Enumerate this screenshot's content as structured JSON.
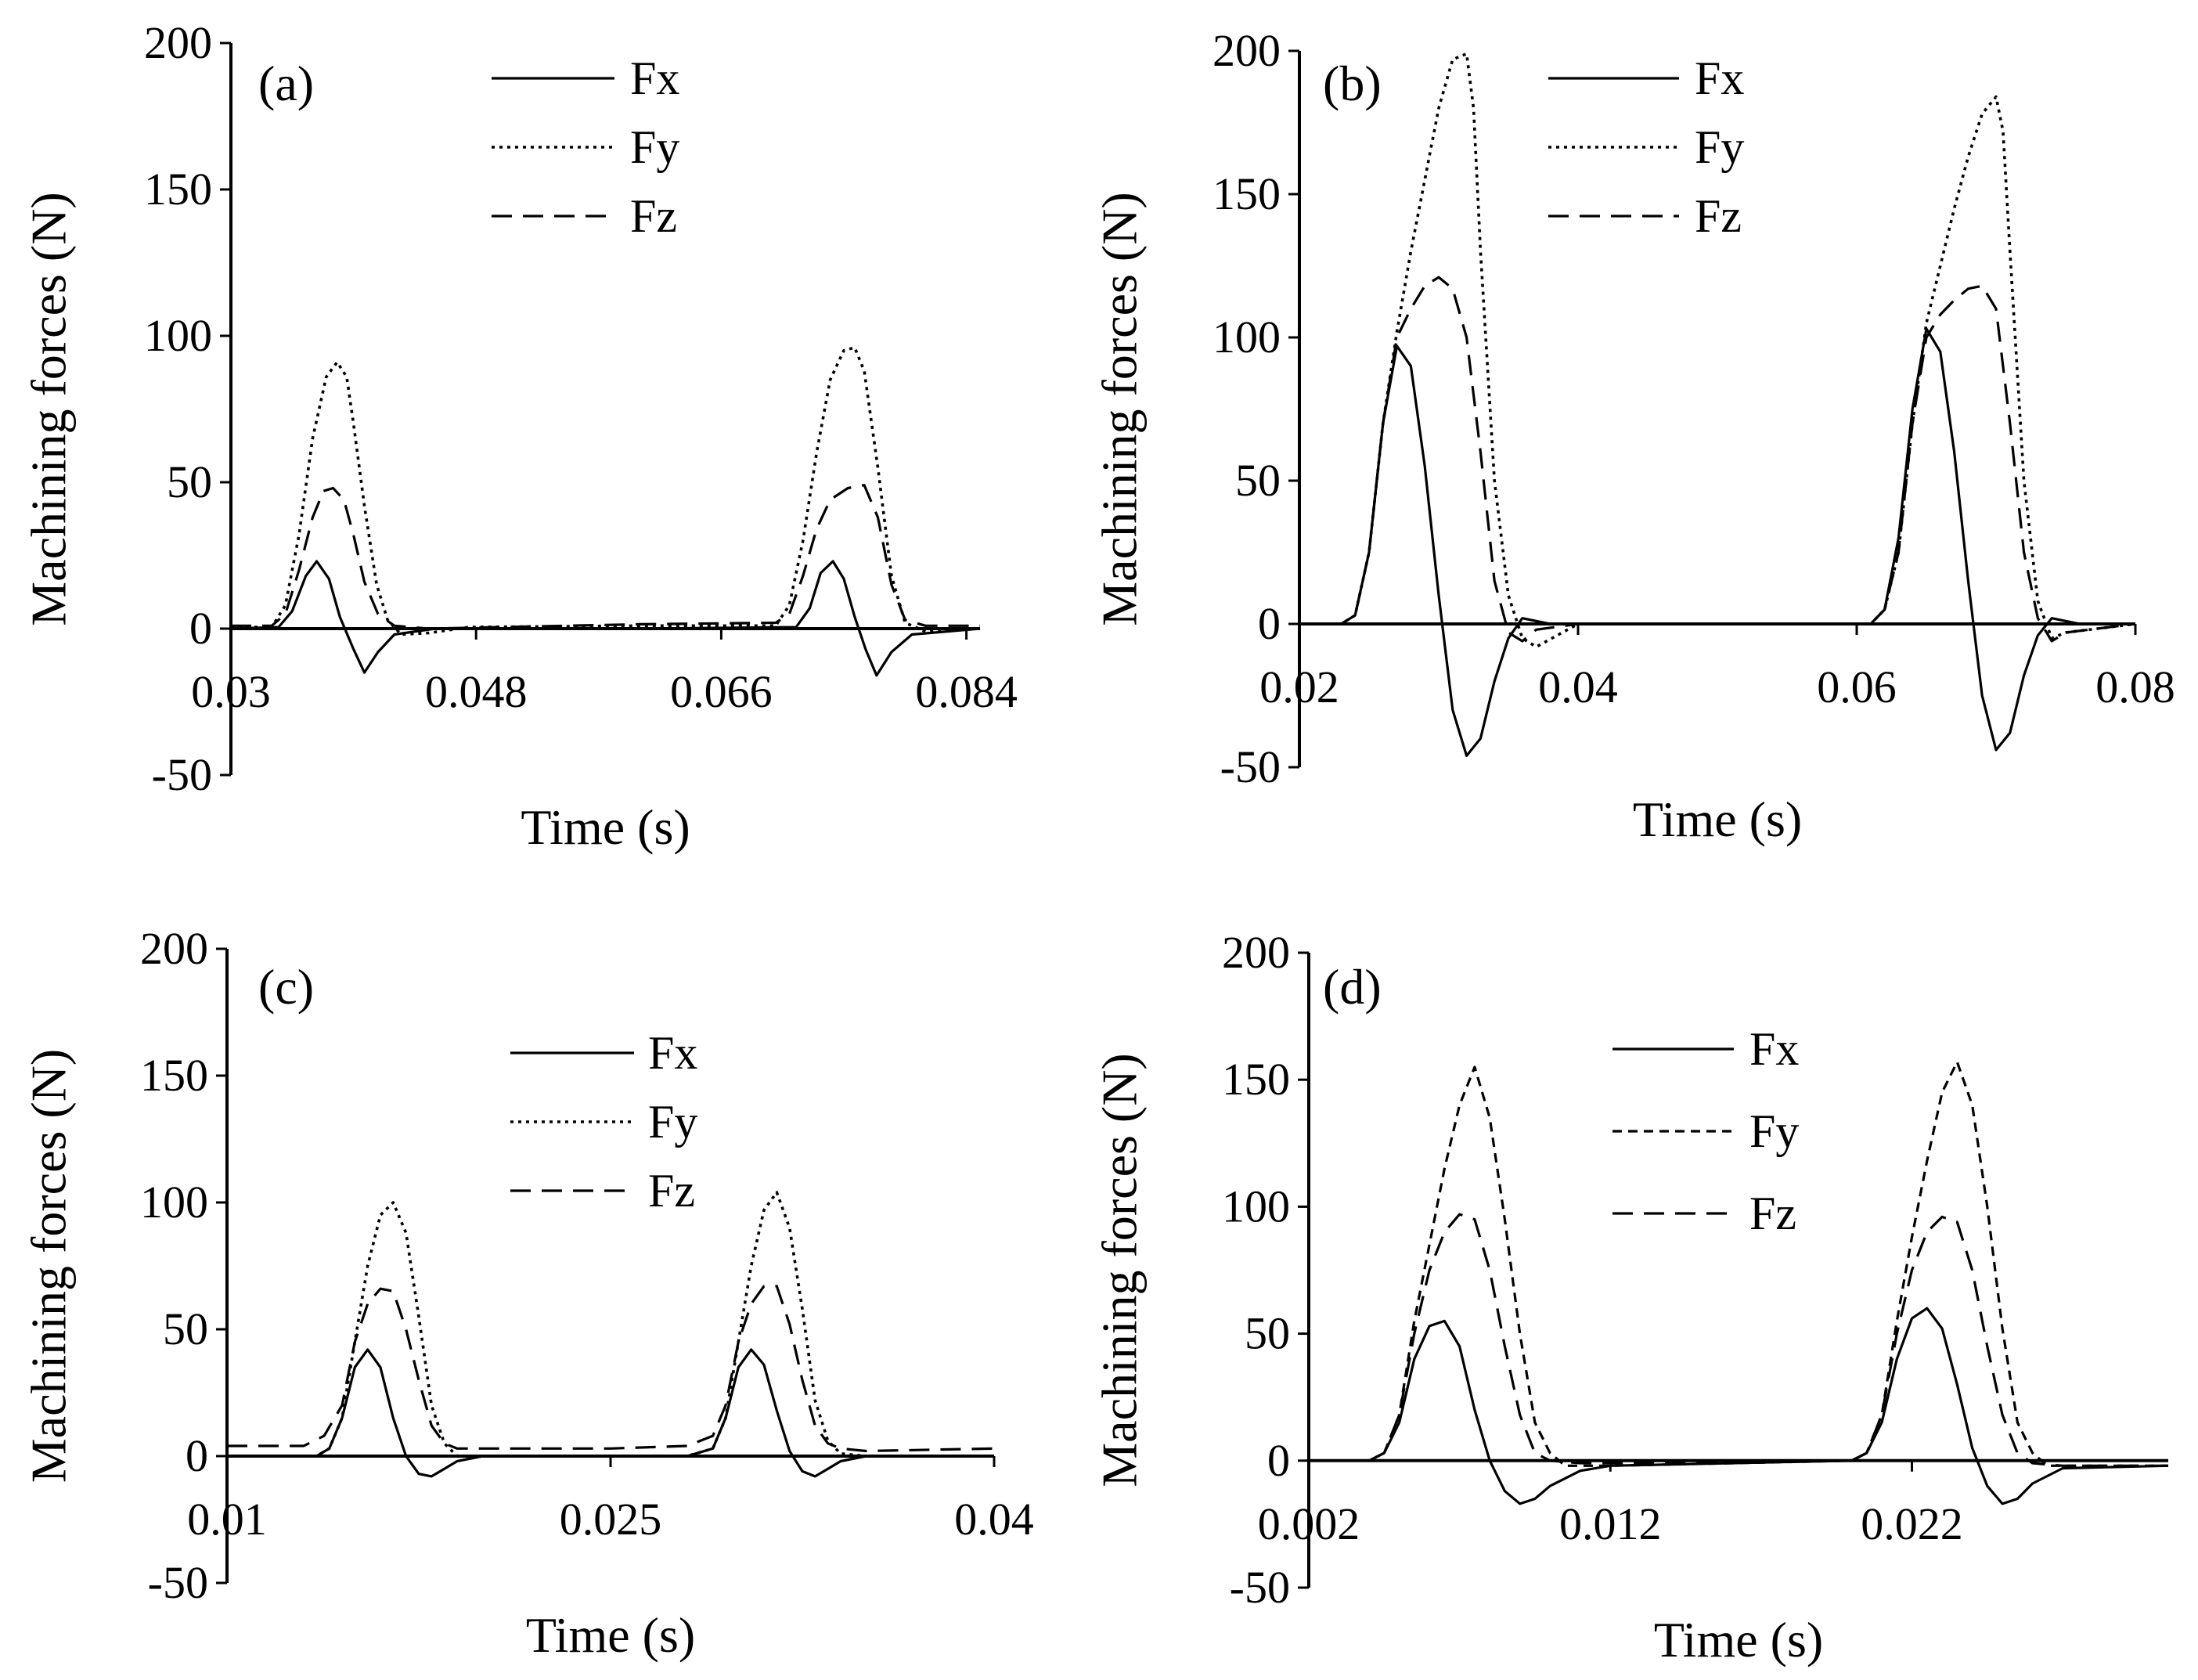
{
  "figure": {
    "background": "#ffffff",
    "line_color": "#000000"
  },
  "chart_data": [
    {
      "type": "line",
      "panel_label": "(a)",
      "xlabel": "Time (s)",
      "ylabel": "Machining forces (N)",
      "xlim": [
        0.03,
        0.085
      ],
      "ylim": [
        -50,
        200
      ],
      "x_ticks": [
        0.03,
        0.048,
        0.066,
        0.084
      ],
      "x_tick_labels": [
        "0.03",
        "0.048",
        "0.066",
        "0.084"
      ],
      "y_ticks": [
        -50,
        0,
        50,
        100,
        150,
        200
      ],
      "y_tick_labels": [
        "-50",
        "0",
        "50",
        "100",
        "150",
        "200"
      ],
      "legend": [
        "Fx",
        "Fy",
        "Fz"
      ],
      "series": [
        {
          "name": "Fx",
          "style": "solid",
          "x": [
            0.03,
            0.0335,
            0.0345,
            0.0355,
            0.0363,
            0.0372,
            0.038,
            0.039,
            0.0398,
            0.0408,
            0.042,
            0.045,
            0.06,
            0.0715,
            0.0725,
            0.0733,
            0.0742,
            0.075,
            0.0758,
            0.0766,
            0.0774,
            0.0785,
            0.08,
            0.085
          ],
          "y": [
            0,
            0.5,
            6,
            18,
            23,
            17,
            4,
            -7,
            -15,
            -8,
            -2,
            0,
            0,
            0.5,
            7,
            19,
            23,
            17,
            4,
            -7,
            -16,
            -8,
            -2,
            0
          ]
        },
        {
          "name": "Fy",
          "style": "dotted",
          "x": [
            0.03,
            0.033,
            0.034,
            0.035,
            0.036,
            0.037,
            0.0378,
            0.0385,
            0.039,
            0.0398,
            0.0407,
            0.0415,
            0.0425,
            0.0445,
            0.0475,
            0.06,
            0.07,
            0.071,
            0.072,
            0.073,
            0.074,
            0.075,
            0.0758,
            0.0765,
            0.0775,
            0.0785,
            0.0795,
            0.081,
            0.085
          ],
          "y": [
            0.5,
            0.5,
            8,
            32,
            65,
            86,
            91,
            86,
            70,
            42,
            15,
            3,
            -2,
            -1.5,
            0.5,
            1,
            1,
            8,
            30,
            60,
            85,
            95,
            96,
            88,
            55,
            18,
            2,
            -1,
            0
          ]
        },
        {
          "name": "Fz",
          "style": "dashed",
          "x": [
            0.03,
            0.033,
            0.034,
            0.035,
            0.036,
            0.0368,
            0.0375,
            0.0383,
            0.039,
            0.0398,
            0.0408,
            0.042,
            0.0445,
            0.06,
            0.07,
            0.071,
            0.072,
            0.073,
            0.074,
            0.0753,
            0.0765,
            0.0775,
            0.0785,
            0.0795,
            0.081,
            0.085
          ],
          "y": [
            1,
            1,
            5,
            20,
            38,
            47,
            48,
            44,
            32,
            16,
            5,
            1,
            0,
            1.5,
            2,
            5,
            18,
            34,
            44,
            48,
            49,
            38,
            15,
            3,
            1,
            1
          ]
        }
      ]
    },
    {
      "type": "line",
      "panel_label": "(b)",
      "xlabel": "Time (s)",
      "ylabel": "Machining forces (N)",
      "xlim": [
        0.02,
        0.08
      ],
      "ylim": [
        -50,
        200
      ],
      "x_ticks": [
        0.02,
        0.04,
        0.06,
        0.08
      ],
      "x_tick_labels": [
        "0.02",
        "0.04",
        "0.06",
        "0.08"
      ],
      "y_ticks": [
        -50,
        0,
        50,
        100,
        150,
        200
      ],
      "y_tick_labels": [
        "-50",
        "0",
        "50",
        "100",
        "150",
        "200"
      ],
      "legend": [
        "Fx",
        "Fy",
        "Fz"
      ],
      "series": [
        {
          "name": "Fx",
          "style": "solid",
          "x": [
            0.02,
            0.023,
            0.024,
            0.025,
            0.026,
            0.027,
            0.028,
            0.029,
            0.03,
            0.031,
            0.032,
            0.033,
            0.034,
            0.035,
            0.036,
            0.038,
            0.05,
            0.061,
            0.062,
            0.063,
            0.064,
            0.065,
            0.066,
            0.067,
            0.068,
            0.069,
            0.07,
            0.071,
            0.072,
            0.073,
            0.074,
            0.076,
            0.08
          ],
          "y": [
            0,
            0,
            3,
            25,
            70,
            97,
            90,
            55,
            10,
            -30,
            -46,
            -40,
            -20,
            -5,
            2,
            0,
            0,
            0,
            5,
            30,
            75,
            103,
            95,
            60,
            15,
            -25,
            -44,
            -38,
            -18,
            -4,
            2,
            0,
            0
          ]
        },
        {
          "name": "Fy",
          "style": "dotted",
          "x": [
            0.02,
            0.023,
            0.024,
            0.025,
            0.026,
            0.027,
            0.028,
            0.029,
            0.03,
            0.031,
            0.032,
            0.0325,
            0.033,
            0.034,
            0.035,
            0.036,
            0.037,
            0.04,
            0.05,
            0.061,
            0.062,
            0.063,
            0.064,
            0.065,
            0.066,
            0.067,
            0.068,
            0.069,
            0.07,
            0.0705,
            0.071,
            0.072,
            0.073,
            0.074,
            0.075,
            0.08
          ],
          "y": [
            0,
            0,
            3,
            25,
            70,
            102,
            130,
            155,
            180,
            197,
            199,
            180,
            130,
            50,
            10,
            -5,
            -8,
            0,
            0,
            0,
            5,
            25,
            70,
            105,
            125,
            145,
            163,
            178,
            184,
            172,
            130,
            50,
            8,
            -5,
            -3,
            0
          ]
        },
        {
          "name": "Fz",
          "style": "dashed",
          "x": [
            0.02,
            0.023,
            0.024,
            0.025,
            0.026,
            0.027,
            0.028,
            0.029,
            0.03,
            0.031,
            0.032,
            0.033,
            0.034,
            0.035,
            0.036,
            0.037,
            0.04,
            0.05,
            0.061,
            0.062,
            0.063,
            0.064,
            0.065,
            0.066,
            0.067,
            0.068,
            0.069,
            0.07,
            0.071,
            0.072,
            0.073,
            0.074,
            0.075,
            0.08
          ],
          "y": [
            0,
            0,
            3,
            25,
            70,
            100,
            110,
            118,
            121,
            117,
            100,
            60,
            15,
            -3,
            -6,
            -2,
            0,
            0,
            0,
            5,
            25,
            70,
            100,
            108,
            113,
            117,
            118,
            110,
            70,
            25,
            2,
            -6,
            -3,
            0
          ]
        }
      ]
    },
    {
      "type": "line",
      "panel_label": "(c)",
      "xlabel": "Time (s)",
      "ylabel": "Machining forces (N)",
      "xlim": [
        0.01,
        0.04
      ],
      "ylim": [
        -50,
        200
      ],
      "x_ticks": [
        0.01,
        0.025,
        0.04
      ],
      "x_tick_labels": [
        "0.01",
        "0.025",
        "0.04"
      ],
      "y_ticks": [
        -50,
        0,
        50,
        100,
        150,
        200
      ],
      "y_tick_labels": [
        "-50",
        "0",
        "50",
        "100",
        "150",
        "200"
      ],
      "legend": [
        "Fx",
        "Fy",
        "Fz"
      ],
      "series": [
        {
          "name": "Fx",
          "style": "solid",
          "x": [
            0.01,
            0.0135,
            0.014,
            0.0145,
            0.015,
            0.0155,
            0.016,
            0.0165,
            0.017,
            0.0175,
            0.018,
            0.0185,
            0.019,
            0.02,
            0.028,
            0.029,
            0.0295,
            0.03,
            0.0305,
            0.031,
            0.0315,
            0.032,
            0.0325,
            0.033,
            0.0335,
            0.034,
            0.035,
            0.04
          ],
          "y": [
            0,
            0,
            3,
            15,
            35,
            42,
            35,
            15,
            0,
            -7,
            -8,
            -5,
            -2,
            0,
            0,
            3,
            15,
            35,
            42,
            36,
            18,
            2,
            -6,
            -8,
            -5,
            -2,
            0,
            0
          ]
        },
        {
          "name": "Fy",
          "style": "dotted",
          "x": [
            0.01,
            0.0135,
            0.014,
            0.0145,
            0.015,
            0.0155,
            0.016,
            0.0165,
            0.017,
            0.0175,
            0.018,
            0.0185,
            0.019,
            0.02,
            0.028,
            0.029,
            0.0295,
            0.03,
            0.0305,
            0.031,
            0.0315,
            0.032,
            0.0325,
            0.033,
            0.0335,
            0.034,
            0.035,
            0.04
          ],
          "y": [
            0,
            0,
            3,
            15,
            45,
            75,
            95,
            100,
            88,
            55,
            20,
            5,
            0,
            0,
            0,
            3,
            15,
            45,
            75,
            97,
            104,
            90,
            58,
            22,
            6,
            1,
            0,
            0
          ]
        },
        {
          "name": "Fz",
          "style": "dashed",
          "x": [
            0.01,
            0.013,
            0.0138,
            0.0145,
            0.015,
            0.0155,
            0.016,
            0.0165,
            0.017,
            0.0175,
            0.018,
            0.0185,
            0.019,
            0.02,
            0.025,
            0.028,
            0.029,
            0.0295,
            0.03,
            0.0305,
            0.031,
            0.0315,
            0.032,
            0.0325,
            0.033,
            0.0335,
            0.034,
            0.035,
            0.04
          ],
          "y": [
            4,
            4,
            8,
            20,
            45,
            60,
            66,
            65,
            50,
            30,
            12,
            5,
            3,
            3,
            3,
            4,
            8,
            20,
            45,
            60,
            67,
            67,
            52,
            30,
            12,
            5,
            3,
            2,
            3
          ]
        }
      ]
    },
    {
      "type": "line",
      "panel_label": "(d)",
      "xlabel": "Time (s)",
      "ylabel": "Machining forces (N)",
      "xlim": [
        0.002,
        0.0305
      ],
      "ylim": [
        -50,
        200
      ],
      "x_ticks": [
        0.002,
        0.012,
        0.022
      ],
      "x_tick_labels": [
        "0.002",
        "0.012",
        "0.022"
      ],
      "y_ticks": [
        -50,
        0,
        50,
        100,
        150,
        200
      ],
      "y_tick_labels": [
        "-50",
        "0",
        "50",
        "100",
        "150",
        "200"
      ],
      "legend": [
        "Fx",
        "Fy",
        "Fz"
      ],
      "series": [
        {
          "name": "Fx",
          "style": "solid",
          "x": [
            0.002,
            0.004,
            0.0045,
            0.005,
            0.0055,
            0.006,
            0.0065,
            0.007,
            0.0075,
            0.008,
            0.0085,
            0.009,
            0.0095,
            0.01,
            0.011,
            0.012,
            0.02,
            0.0205,
            0.021,
            0.0215,
            0.022,
            0.0225,
            0.023,
            0.0235,
            0.024,
            0.0245,
            0.025,
            0.0255,
            0.026,
            0.027,
            0.0305
          ],
          "y": [
            0,
            0,
            3,
            15,
            40,
            53,
            55,
            45,
            20,
            0,
            -12,
            -17,
            -15,
            -10,
            -4,
            -2,
            0,
            3,
            15,
            40,
            56,
            60,
            52,
            30,
            5,
            -10,
            -17,
            -15,
            -9,
            -3,
            -2
          ]
        },
        {
          "name": "Fy",
          "style": "dashed-fine",
          "x": [
            0.002,
            0.004,
            0.0045,
            0.005,
            0.0055,
            0.006,
            0.0065,
            0.007,
            0.0075,
            0.008,
            0.0085,
            0.009,
            0.0095,
            0.01,
            0.0105,
            0.011,
            0.012,
            0.02,
            0.0205,
            0.021,
            0.0215,
            0.022,
            0.0225,
            0.023,
            0.0235,
            0.024,
            0.0245,
            0.025,
            0.0255,
            0.026,
            0.0265,
            0.027,
            0.0305
          ],
          "y": [
            0,
            0,
            3,
            18,
            55,
            85,
            115,
            140,
            155,
            135,
            95,
            50,
            15,
            3,
            -2,
            -2,
            -2,
            0,
            3,
            18,
            55,
            88,
            118,
            145,
            157,
            140,
            100,
            52,
            15,
            3,
            -2,
            -2,
            -2
          ]
        },
        {
          "name": "Fz",
          "style": "dashed",
          "x": [
            0.002,
            0.004,
            0.0045,
            0.005,
            0.0055,
            0.006,
            0.0065,
            0.007,
            0.0075,
            0.008,
            0.0085,
            0.009,
            0.0095,
            0.01,
            0.011,
            0.012,
            0.02,
            0.0205,
            0.021,
            0.0215,
            0.022,
            0.0225,
            0.023,
            0.0235,
            0.024,
            0.0245,
            0.025,
            0.0255,
            0.026,
            0.027,
            0.0305
          ],
          "y": [
            0,
            0,
            3,
            18,
            50,
            75,
            90,
            97,
            95,
            75,
            45,
            18,
            3,
            0,
            -1,
            -1,
            0,
            3,
            18,
            50,
            75,
            90,
            96,
            94,
            75,
            45,
            18,
            3,
            -1,
            -2,
            -2
          ]
        }
      ]
    }
  ]
}
